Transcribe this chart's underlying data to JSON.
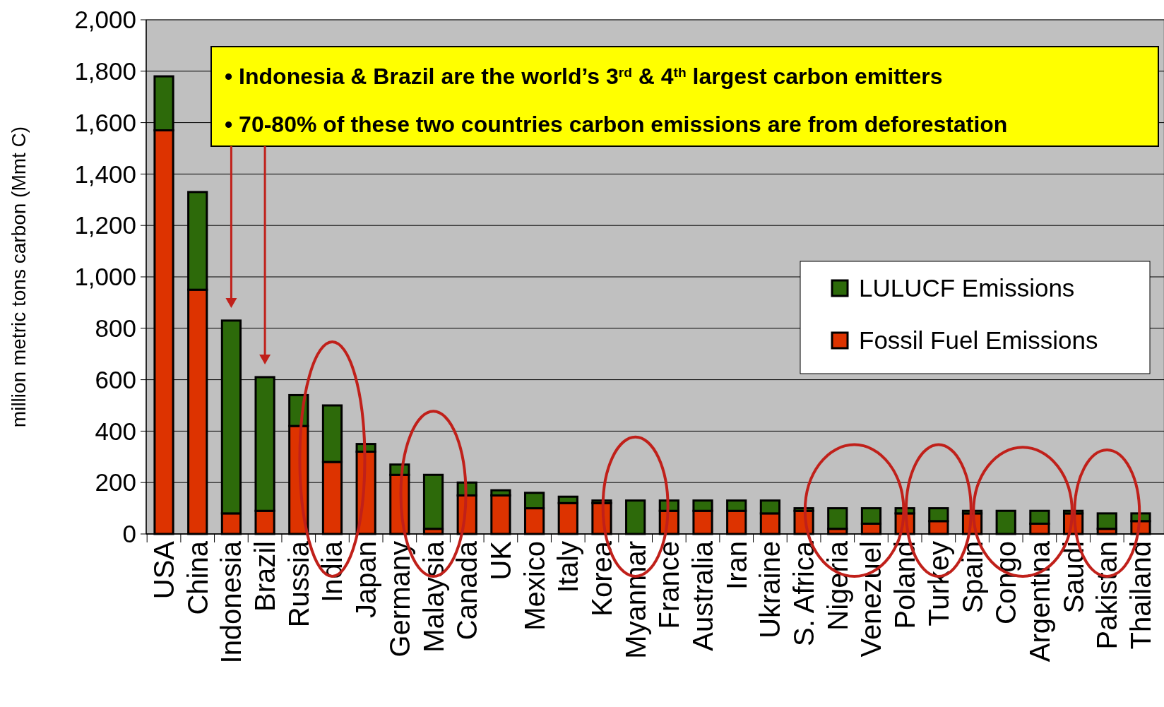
{
  "chart_data": {
    "type": "bar",
    "stacked": true,
    "ylabel": "million metric tons carbon (Mmt C)",
    "categories": [
      "USA",
      "China",
      "Indonesia",
      "Brazil",
      "Russia",
      "India",
      "Japan",
      "Germany",
      "Malaysia",
      "Canada",
      "UK",
      "Mexico",
      "Italy",
      "Korea",
      "Myanmar",
      "France",
      "Australia",
      "Iran",
      "Ukraine",
      "S. Africa",
      "Nigeria",
      "Venezuel",
      "Poland",
      "Turkey",
      "Spain",
      "Congo",
      "Argentina",
      "Saudi",
      "Pakistan",
      "Thailand"
    ],
    "series": [
      {
        "name": "Fossil Fuel Emissions",
        "color": "#dd3300",
        "values": [
          1570,
          950,
          80,
          90,
          420,
          280,
          320,
          230,
          20,
          150,
          150,
          100,
          120,
          120,
          0,
          90,
          90,
          90,
          80,
          90,
          20,
          40,
          80,
          50,
          80,
          0,
          40,
          80,
          20,
          50
        ]
      },
      {
        "name": "LULUCF Emissions",
        "color": "#2d6a0a",
        "values": [
          210,
          380,
          750,
          520,
          120,
          220,
          30,
          40,
          210,
          50,
          20,
          60,
          25,
          10,
          130,
          40,
          40,
          40,
          50,
          10,
          80,
          60,
          20,
          50,
          10,
          90,
          50,
          10,
          60,
          30
        ]
      }
    ],
    "ylim": [
      0,
      2000
    ],
    "yticks": [
      0,
      200,
      400,
      600,
      800,
      {
        "value": 1000,
        "label": "1,000"
      },
      {
        "value": 1200,
        "label": "1,200"
      },
      {
        "value": 1400,
        "label": "1,400"
      },
      {
        "value": 1600,
        "label": "1,600"
      },
      {
        "value": 1800,
        "label": "1,800"
      },
      {
        "value": 2000,
        "label": "2,000"
      }
    ],
    "grid": "y",
    "legend": "right",
    "annotations": [
      "• Indonesia & Brazil are the world’s 3$^{rd}$ & 4$^{th}$ largest carbon emitters",
      "• 70-80% of these two countries carbon emissions are from deforestation"
    ]
  }
}
